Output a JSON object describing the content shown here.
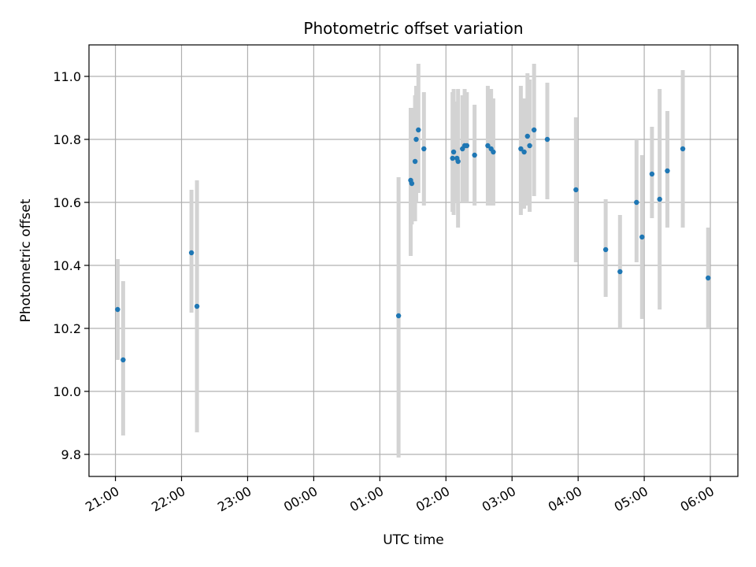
{
  "chart_data": {
    "type": "scatter",
    "title": "Photometric offset variation",
    "xlabel": "UTC time",
    "ylabel": "Photometric offset",
    "x_unit": "UTC time (hours, 21:00 of the first night through 06:00 of the next day)",
    "xlim": [
      "20:36",
      "06:25"
    ],
    "ylim": [
      9.73,
      11.1
    ],
    "grid": true,
    "x_ticks": [
      "21:00",
      "22:00",
      "23:00",
      "00:00",
      "01:00",
      "02:00",
      "03:00",
      "04:00",
      "05:00",
      "06:00"
    ],
    "y_ticks": [
      "9.8",
      "10.0",
      "10.2",
      "10.4",
      "10.6",
      "10.8",
      "11.0"
    ],
    "marker_color": "#1f77b4",
    "errorbar_color": "#d3d3d3",
    "points": [
      {
        "t": "21:02",
        "y": 10.26,
        "ylow": 10.1,
        "yhigh": 10.42
      },
      {
        "t": "21:07",
        "y": 10.1,
        "ylow": 9.86,
        "yhigh": 10.35
      },
      {
        "t": "22:09",
        "y": 10.44,
        "ylow": 10.25,
        "yhigh": 10.64
      },
      {
        "t": "22:14",
        "y": 10.27,
        "ylow": 9.87,
        "yhigh": 10.67
      },
      {
        "t": "01:17",
        "y": 10.24,
        "ylow": 9.79,
        "yhigh": 10.68
      },
      {
        "t": "01:28",
        "y": 10.67,
        "ylow": 10.43,
        "yhigh": 10.9
      },
      {
        "t": "01:29",
        "y": 10.66,
        "ylow": 10.53,
        "yhigh": 10.9
      },
      {
        "t": "01:32",
        "y": 10.73,
        "ylow": 10.54,
        "yhigh": 10.94
      },
      {
        "t": "01:33",
        "y": 10.8,
        "ylow": 10.6,
        "yhigh": 10.97
      },
      {
        "t": "01:35",
        "y": 10.83,
        "ylow": 10.63,
        "yhigh": 11.04
      },
      {
        "t": "01:40",
        "y": 10.77,
        "ylow": 10.59,
        "yhigh": 10.95
      },
      {
        "t": "02:06",
        "y": 10.74,
        "ylow": 10.57,
        "yhigh": 10.95
      },
      {
        "t": "02:07",
        "y": 10.76,
        "ylow": 10.56,
        "yhigh": 10.96
      },
      {
        "t": "02:10",
        "y": 10.74,
        "ylow": 10.6,
        "yhigh": 10.92
      },
      {
        "t": "02:11",
        "y": 10.73,
        "ylow": 10.52,
        "yhigh": 10.96
      },
      {
        "t": "02:15",
        "y": 10.77,
        "ylow": 10.6,
        "yhigh": 10.94
      },
      {
        "t": "02:17",
        "y": 10.78,
        "ylow": 10.6,
        "yhigh": 10.96
      },
      {
        "t": "02:19",
        "y": 10.78,
        "ylow": 10.6,
        "yhigh": 10.95
      },
      {
        "t": "02:26",
        "y": 10.75,
        "ylow": 10.59,
        "yhigh": 10.91
      },
      {
        "t": "02:38",
        "y": 10.78,
        "ylow": 10.59,
        "yhigh": 10.97
      },
      {
        "t": "02:41",
        "y": 10.77,
        "ylow": 10.59,
        "yhigh": 10.96
      },
      {
        "t": "02:43",
        "y": 10.76,
        "ylow": 10.59,
        "yhigh": 10.93
      },
      {
        "t": "03:08",
        "y": 10.77,
        "ylow": 10.56,
        "yhigh": 10.97
      },
      {
        "t": "03:11",
        "y": 10.76,
        "ylow": 10.58,
        "yhigh": 10.93
      },
      {
        "t": "03:14",
        "y": 10.81,
        "ylow": 10.59,
        "yhigh": 11.01
      },
      {
        "t": "03:16",
        "y": 10.78,
        "ylow": 10.57,
        "yhigh": 10.99
      },
      {
        "t": "03:20",
        "y": 10.83,
        "ylow": 10.62,
        "yhigh": 11.04
      },
      {
        "t": "03:32",
        "y": 10.8,
        "ylow": 10.61,
        "yhigh": 10.98
      },
      {
        "t": "03:58",
        "y": 10.64,
        "ylow": 10.41,
        "yhigh": 10.87
      },
      {
        "t": "04:25",
        "y": 10.45,
        "ylow": 10.3,
        "yhigh": 10.61
      },
      {
        "t": "04:38",
        "y": 10.38,
        "ylow": 10.2,
        "yhigh": 10.56
      },
      {
        "t": "04:53",
        "y": 10.6,
        "ylow": 10.41,
        "yhigh": 10.8
      },
      {
        "t": "04:58",
        "y": 10.49,
        "ylow": 10.23,
        "yhigh": 10.75
      },
      {
        "t": "05:07",
        "y": 10.69,
        "ylow": 10.55,
        "yhigh": 10.84
      },
      {
        "t": "05:14",
        "y": 10.61,
        "ylow": 10.26,
        "yhigh": 10.96
      },
      {
        "t": "05:21",
        "y": 10.7,
        "ylow": 10.52,
        "yhigh": 10.89
      },
      {
        "t": "05:35",
        "y": 10.77,
        "ylow": 10.52,
        "yhigh": 11.02
      },
      {
        "t": "05:58",
        "y": 10.36,
        "ylow": 10.2,
        "yhigh": 10.52
      }
    ]
  }
}
